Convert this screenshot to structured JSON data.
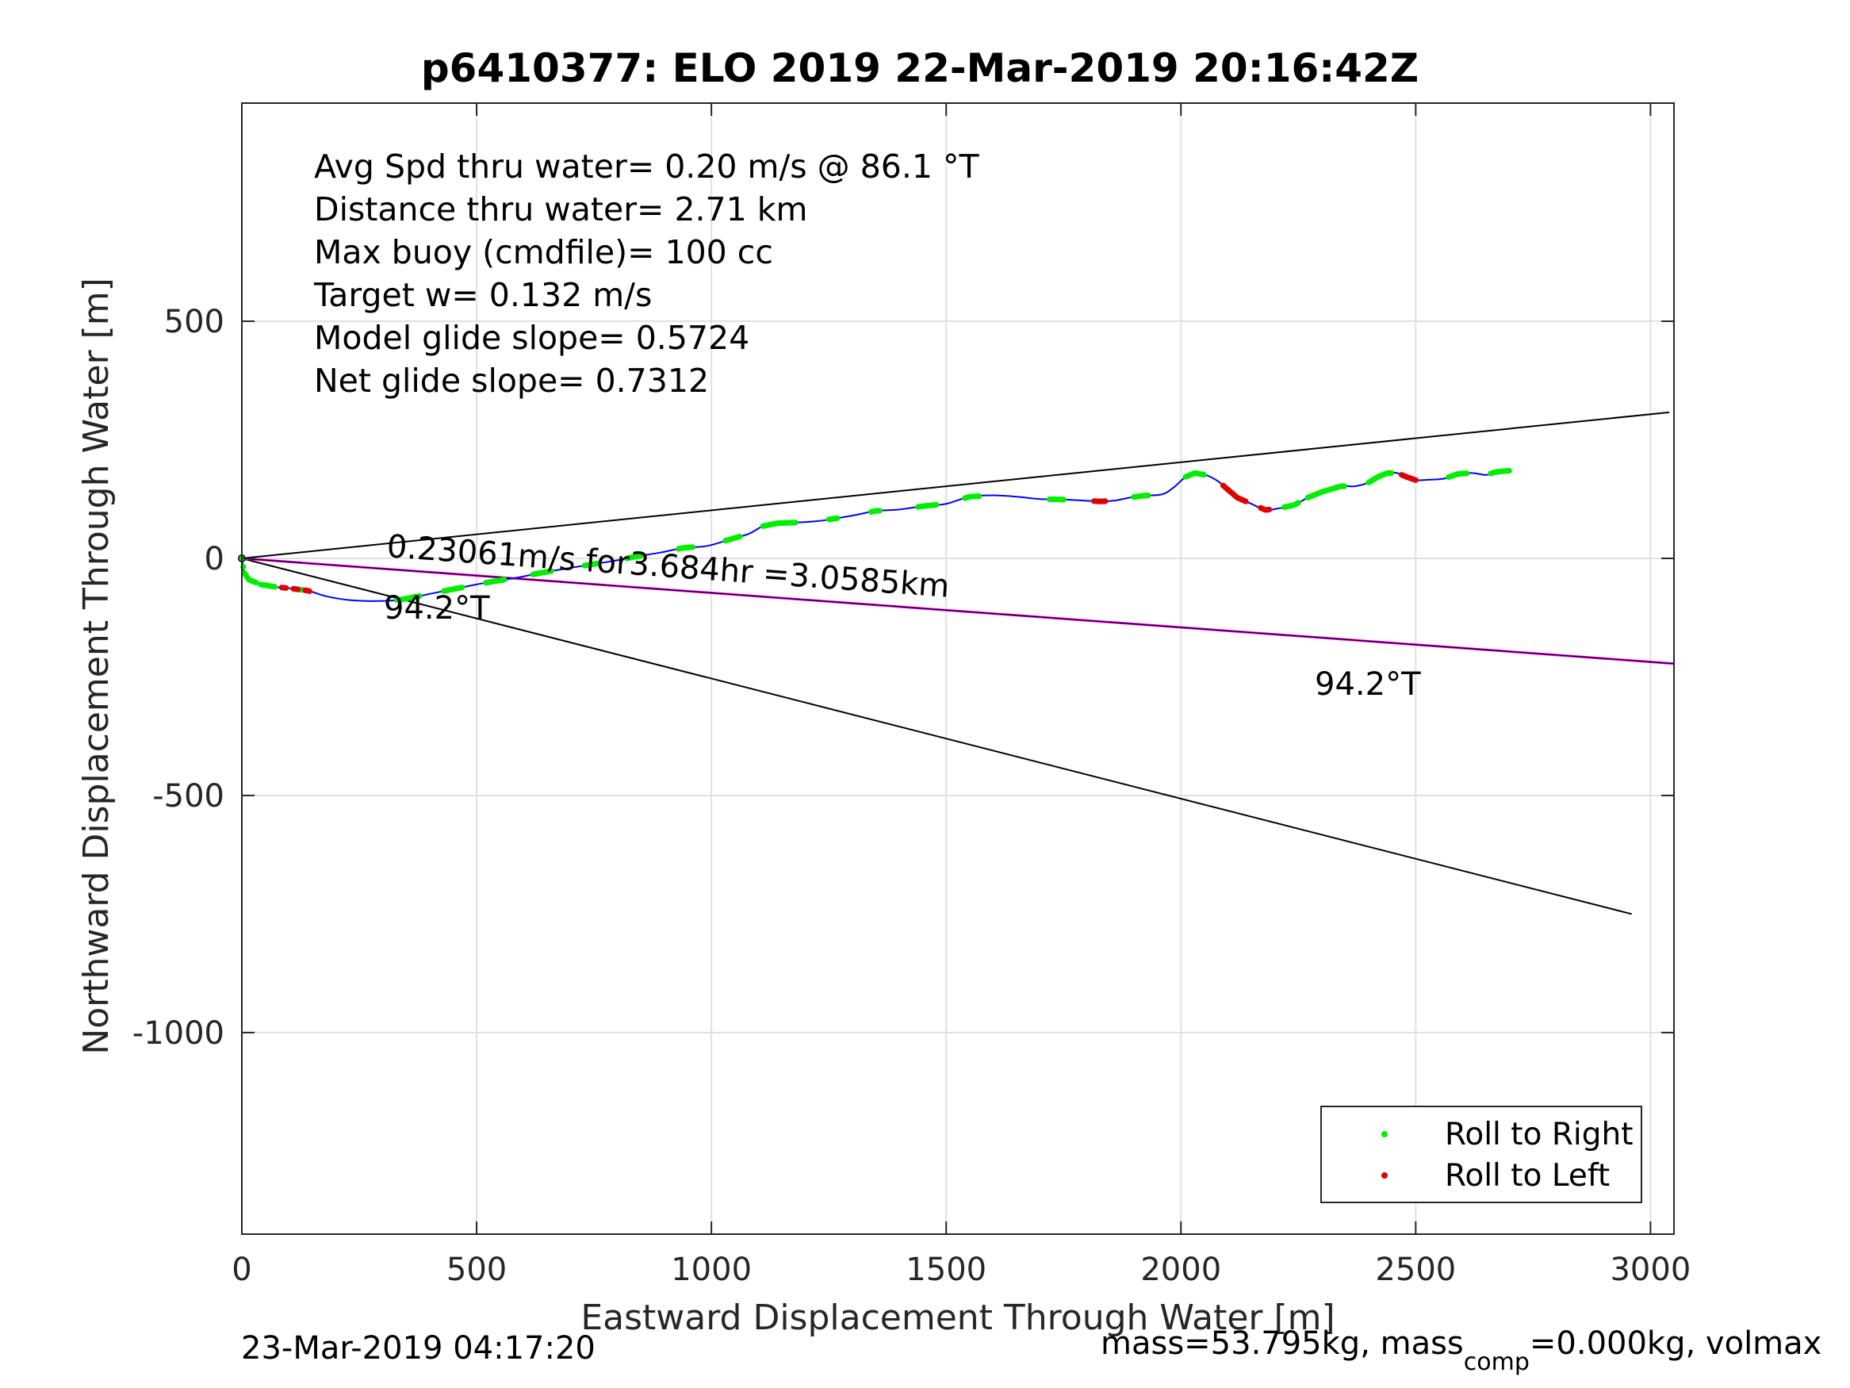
{
  "title": "p6410377: ELO 2019 22-Mar-2019 20:16:42Z",
  "info_lines": [
    "Avg Spd thru water=  0.20 m/s @  86.1 °T",
    "Distance thru water=  2.71 km",
    "Max buoy (cmdfile)= 100 cc",
    "Target w= 0.132 m/s",
    "Model glide slope= 0.5724",
    "Net glide slope= 0.7312"
  ],
  "annotations": {
    "current": "0.23061m/s for3.684hr =3.0585km",
    "heading_near": "94.2°T",
    "heading_far": "94.2°T"
  },
  "footer": {
    "left": "23-Mar-2019 04:17:20",
    "right_prefix": "mass=53.795kg, mass",
    "right_sub": "comp",
    "right_suffix": "=0.000kg, volmax"
  },
  "colors": {
    "track": "#0000ff",
    "roll_right": "#00ee00",
    "roll_left": "#e00000",
    "current_line": "#ff00ff",
    "grid": "#e0e0e0"
  },
  "chart_data": {
    "type": "scatter",
    "title": "p6410377: ELO 2019 22-Mar-2019 20:16:42Z",
    "xlabel": "Eastward Displacement Through Water [m]",
    "ylabel": "Northward Displacement Through Water [m]",
    "xlim": [
      0,
      3050
    ],
    "ylim": [
      -1425,
      960
    ],
    "xticks": [
      0,
      500,
      1000,
      1500,
      2000,
      2500,
      3000
    ],
    "yticks": [
      -1000,
      -500,
      0,
      500
    ],
    "xtick_labels": [
      "0",
      "500",
      "1000",
      "1500",
      "2000",
      "2500",
      "3000"
    ],
    "ytick_labels": [
      "-1000",
      "-500",
      "0",
      "500"
    ],
    "grid": true,
    "legend_position": "bottom-right",
    "legend": [
      "Roll to Right",
      "Roll to Left"
    ],
    "track": [
      [
        0,
        0
      ],
      [
        5,
        -30
      ],
      [
        15,
        -45
      ],
      [
        40,
        -55
      ],
      [
        70,
        -60
      ],
      [
        100,
        -63
      ],
      [
        140,
        -68
      ],
      [
        180,
        -80
      ],
      [
        230,
        -88
      ],
      [
        290,
        -90
      ],
      [
        340,
        -87
      ],
      [
        400,
        -75
      ],
      [
        450,
        -65
      ],
      [
        500,
        -55
      ],
      [
        540,
        -48
      ],
      [
        590,
        -40
      ],
      [
        640,
        -30
      ],
      [
        700,
        -20
      ],
      [
        750,
        -12
      ],
      [
        800,
        -4
      ],
      [
        840,
        4
      ],
      [
        890,
        12
      ],
      [
        940,
        22
      ],
      [
        990,
        26
      ],
      [
        1040,
        40
      ],
      [
        1080,
        52
      ],
      [
        1110,
        68
      ],
      [
        1140,
        74
      ],
      [
        1190,
        76
      ],
      [
        1230,
        79
      ],
      [
        1270,
        85
      ],
      [
        1310,
        92
      ],
      [
        1350,
        100
      ],
      [
        1400,
        103
      ],
      [
        1450,
        110
      ],
      [
        1500,
        115
      ],
      [
        1550,
        130
      ],
      [
        1600,
        133
      ],
      [
        1650,
        130
      ],
      [
        1700,
        125
      ],
      [
        1750,
        124
      ],
      [
        1790,
        122
      ],
      [
        1830,
        120
      ],
      [
        1860,
        122
      ],
      [
        1890,
        128
      ],
      [
        1920,
        132
      ],
      [
        1960,
        135
      ],
      [
        1985,
        150
      ],
      [
        2010,
        172
      ],
      [
        2030,
        180
      ],
      [
        2055,
        175
      ],
      [
        2080,
        162
      ],
      [
        2100,
        145
      ],
      [
        2120,
        128
      ],
      [
        2150,
        115
      ],
      [
        2180,
        102
      ],
      [
        2205,
        105
      ],
      [
        2240,
        112
      ],
      [
        2270,
        128
      ],
      [
        2300,
        140
      ],
      [
        2340,
        152
      ],
      [
        2370,
        152
      ],
      [
        2400,
        160
      ],
      [
        2420,
        172
      ],
      [
        2440,
        180
      ],
      [
        2460,
        180
      ],
      [
        2480,
        172
      ],
      [
        2500,
        165
      ],
      [
        2530,
        166
      ],
      [
        2560,
        168
      ],
      [
        2590,
        178
      ],
      [
        2620,
        180
      ],
      [
        2650,
        176
      ],
      [
        2670,
        182
      ],
      [
        2700,
        185
      ]
    ],
    "roll_right_segments": [
      [
        0,
        30
      ],
      [
        40,
        70
      ],
      [
        120,
        130
      ],
      [
        330,
        380
      ],
      [
        430,
        470
      ],
      [
        520,
        560
      ],
      [
        620,
        660
      ],
      [
        730,
        760
      ],
      [
        820,
        850
      ],
      [
        930,
        960
      ],
      [
        1030,
        1060
      ],
      [
        1110,
        1180
      ],
      [
        1250,
        1270
      ],
      [
        1340,
        1360
      ],
      [
        1440,
        1480
      ],
      [
        1540,
        1570
      ],
      [
        1720,
        1750
      ],
      [
        1900,
        1930
      ],
      [
        2010,
        2050
      ],
      [
        2220,
        2250
      ],
      [
        2270,
        2350
      ],
      [
        2400,
        2450
      ],
      [
        2570,
        2610
      ],
      [
        2660,
        2700
      ]
    ],
    "roll_left_segments": [
      [
        85,
        95
      ],
      [
        110,
        120
      ],
      [
        135,
        145
      ],
      [
        1815,
        1840
      ],
      [
        2090,
        2140
      ],
      [
        2170,
        2190
      ],
      [
        2470,
        2500
      ]
    ],
    "lines": {
      "wedge_upper": [
        [
          0,
          0
        ],
        [
          3040,
          308
        ]
      ],
      "wedge_lower": [
        [
          0,
          0
        ],
        [
          2960,
          -750
        ]
      ],
      "current_track": [
        [
          0,
          0
        ],
        [
          3050,
          -222
        ]
      ]
    }
  }
}
